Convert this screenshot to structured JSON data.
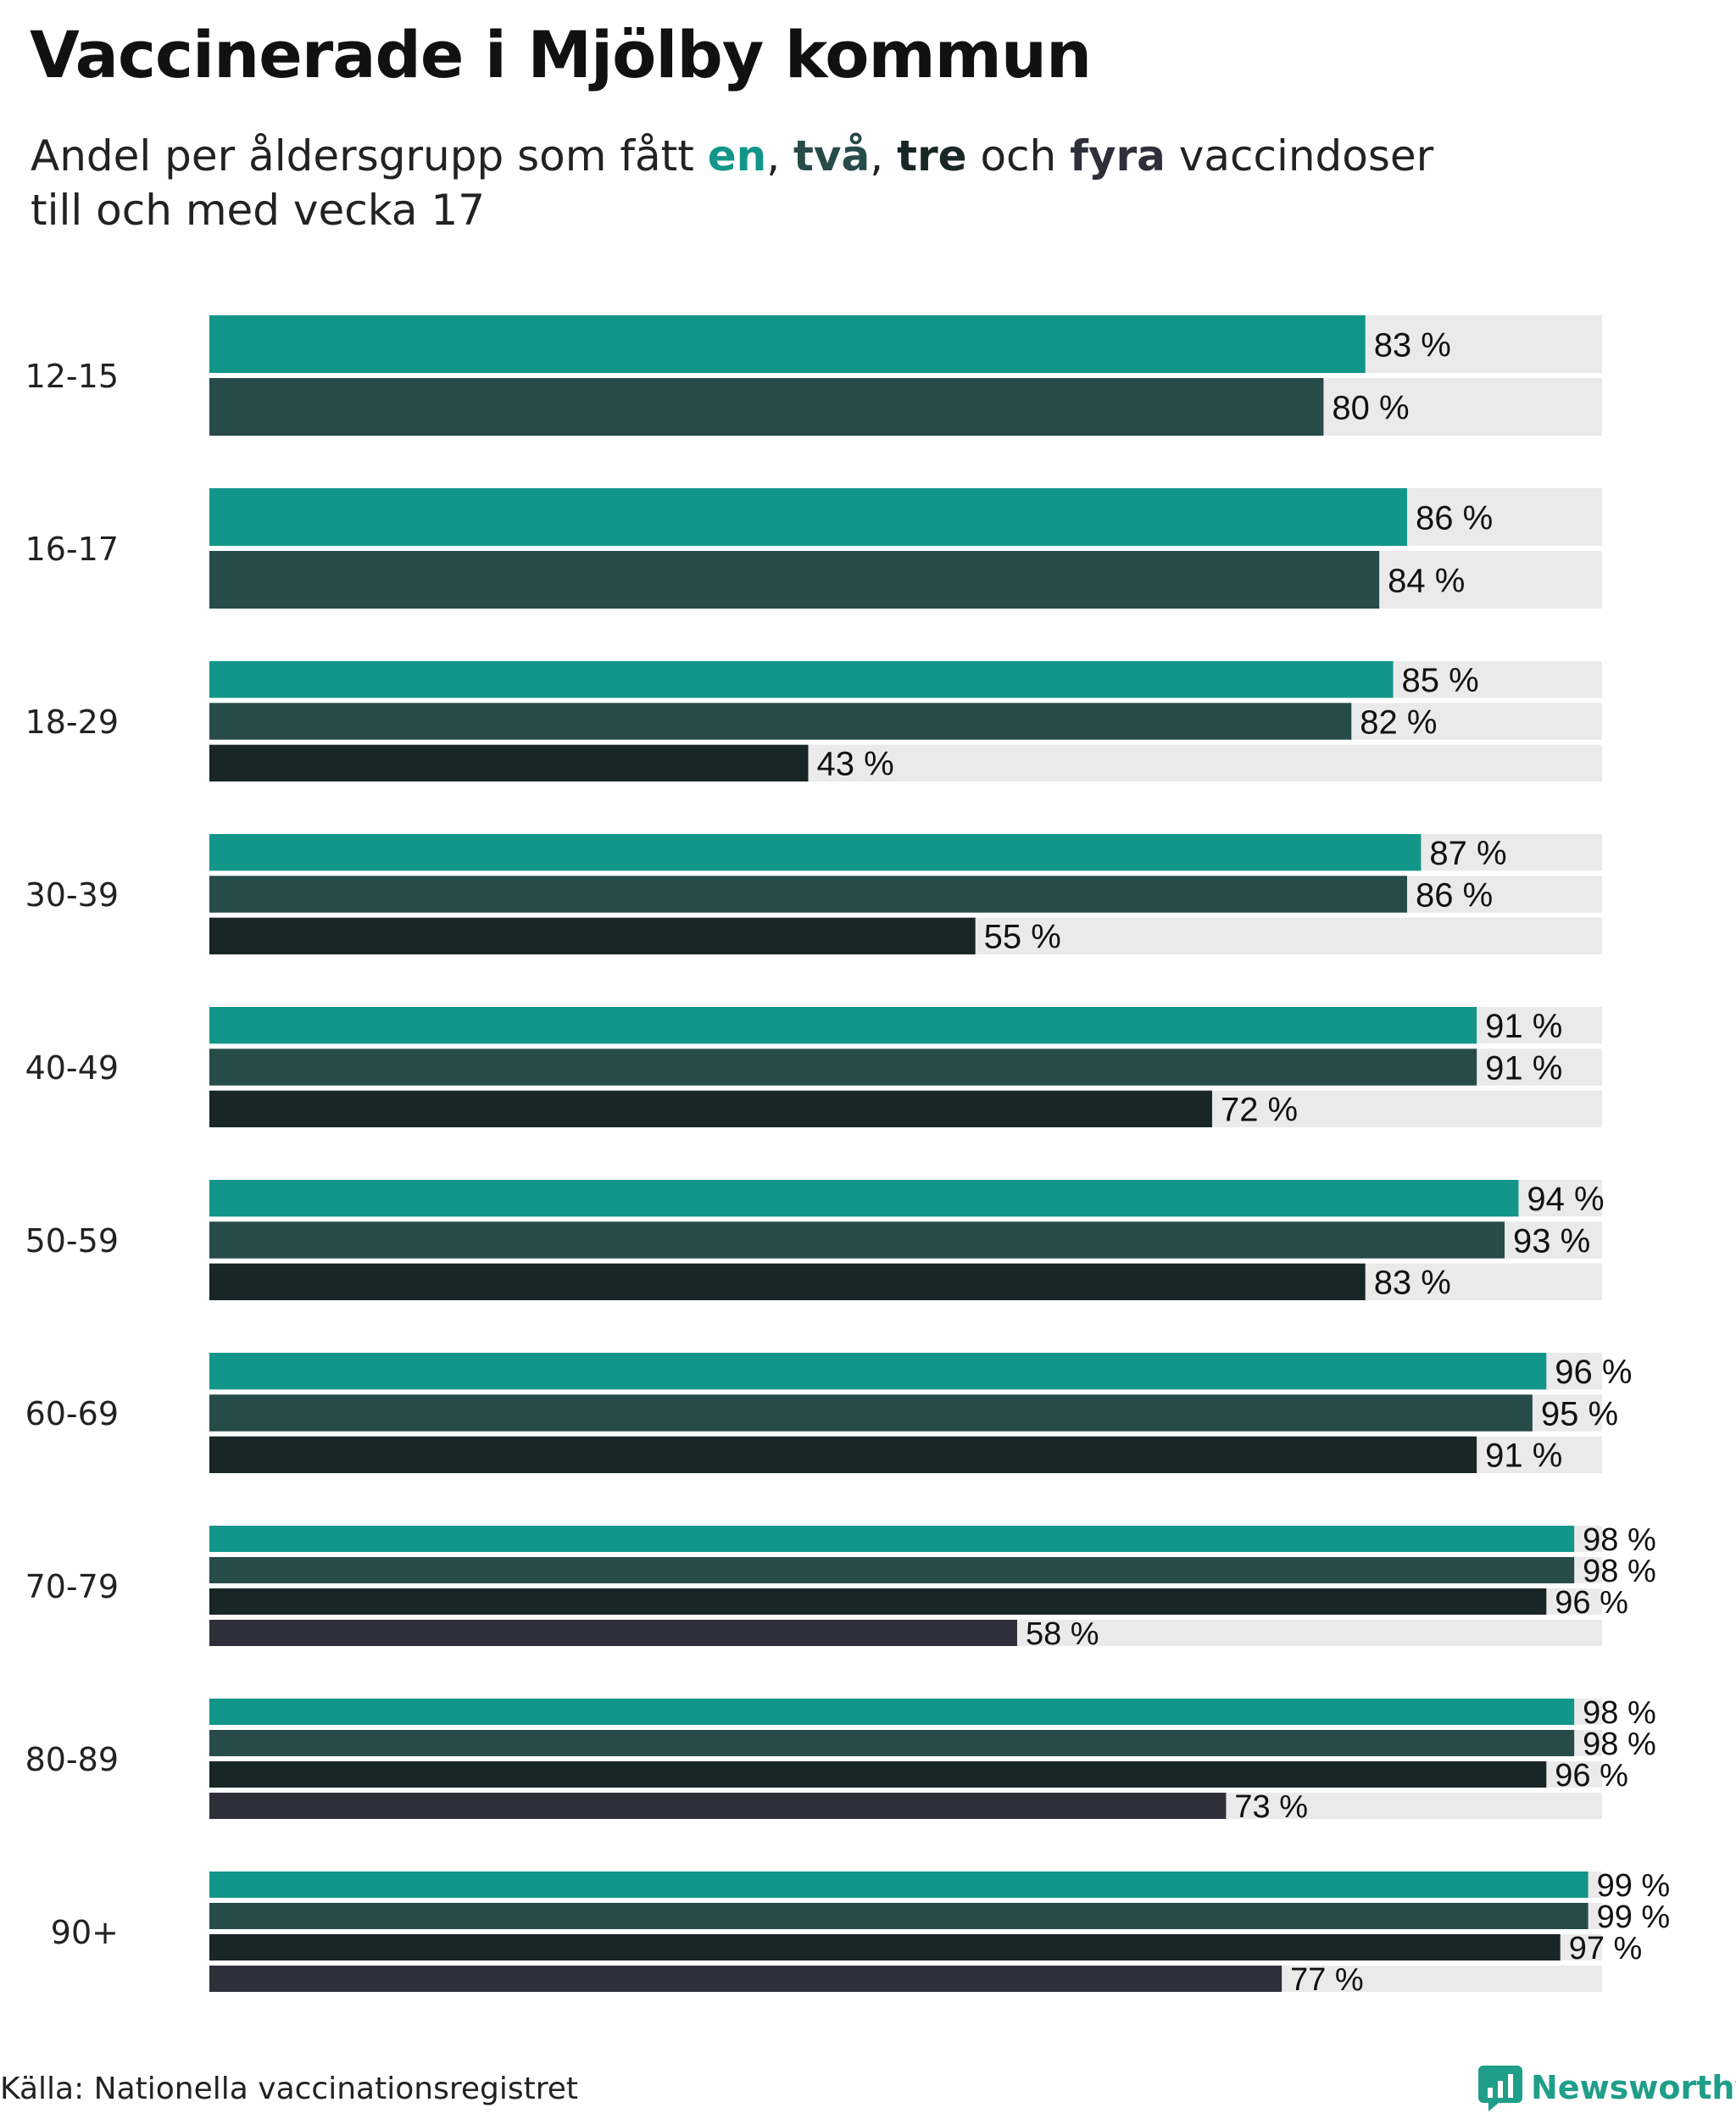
{
  "title": "Vaccinerade i Mjölby kommun",
  "subtitle": {
    "before": "Andel per åldersgrupp som fått ",
    "dose1": "en",
    "sep1": ", ",
    "dose2": "två",
    "sep2": ", ",
    "dose3": "tre",
    "sep3": " och ",
    "dose4": "fyra",
    "after": " vaccindoser",
    "line2": "till och med vecka 17"
  },
  "colors": {
    "dose1": "#13968a",
    "dose2": "#274b49",
    "dose3": "#182725",
    "dose4": "#2f2f3c",
    "track": "#eaeaea",
    "brand": "#1f9e89"
  },
  "chart_data": {
    "type": "bar",
    "orientation": "horizontal",
    "title": "Vaccinerade i Mjölby kommun",
    "categories": [
      "12-15",
      "16-17",
      "18-29",
      "30-39",
      "40-49",
      "50-59",
      "60-69",
      "70-79",
      "80-89",
      "90+"
    ],
    "series": [
      {
        "name": "en",
        "values": [
          83,
          86,
          85,
          87,
          91,
          94,
          96,
          98,
          98,
          99
        ]
      },
      {
        "name": "två",
        "values": [
          80,
          84,
          82,
          86,
          91,
          93,
          95,
          98,
          98,
          99
        ]
      },
      {
        "name": "tre",
        "values": [
          null,
          null,
          43,
          55,
          72,
          83,
          91,
          96,
          96,
          97
        ]
      },
      {
        "name": "fyra",
        "values": [
          null,
          null,
          null,
          null,
          null,
          null,
          null,
          58,
          73,
          77
        ]
      }
    ],
    "value_suffix": " %",
    "xlim": [
      0,
      100
    ],
    "xlabel": "",
    "ylabel": ""
  },
  "footer": {
    "source": "Källa: Nationella vaccinationsregistret",
    "brand": "Newsworthy",
    "brand_icon": "newsworthy-logo-icon"
  }
}
